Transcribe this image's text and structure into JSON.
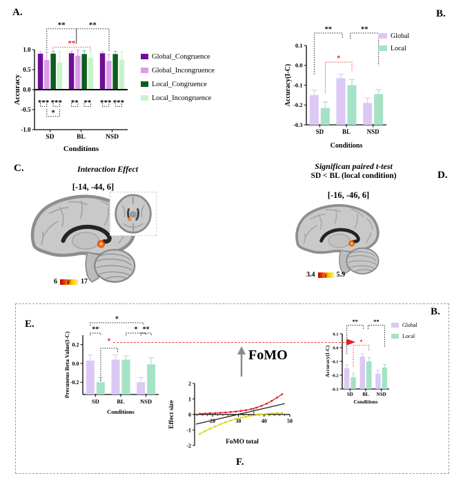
{
  "panel_labels": {
    "a": "A.",
    "b_top": "B.",
    "c": "C.",
    "d": "D.",
    "e": "E.",
    "f": "F.",
    "b_bottom": "B."
  },
  "panel_c": {
    "title": "Interaction Effect",
    "coords": "[-14, -44, 6]",
    "colorbar_min": "6",
    "colorbar_max": "17",
    "colorbar_stat": "F"
  },
  "panel_d": {
    "title_line1": "Significan paired t-test",
    "title_line2": "SD < BL (local condition)",
    "coords": "[-16, -46, 6]",
    "colorbar_min": "3.4",
    "colorbar_max": "5.9",
    "colorbar_stat": "t"
  },
  "fomo_label": "FoMO",
  "chart_data": [
    {
      "id": "panel_a",
      "type": "bar",
      "title": "",
      "xlabel": "Conditions",
      "ylabel": "Accuracy",
      "categories": [
        "SD",
        "BL",
        "NSD"
      ],
      "ylim": [
        -1,
        1
      ],
      "ytick_vals": [
        1.0,
        0.5,
        0.0,
        -0.5,
        -1.0
      ],
      "ytick_labels": [
        "1.0",
        "0.5",
        "0.0",
        "-0.5",
        "-1.0"
      ],
      "baseline": "zero",
      "zero_line": true,
      "series": [
        {
          "name": "Global_Congruence",
          "color": "#6E0F96",
          "ecolor": "#D5AEE4",
          "values": [
            0.9,
            0.91,
            0.91
          ],
          "errors": [
            0.05,
            0.05,
            0.04
          ]
        },
        {
          "name": "Global_Incongruence",
          "color": "#DC9BE8",
          "ecolor": "#DC9BE8",
          "values": [
            0.74,
            0.85,
            0.72
          ],
          "errors": [
            0.2,
            0.14,
            0.16
          ]
        },
        {
          "name": "Local_Congruence",
          "color": "#0B5E1B",
          "ecolor": "#7FBF8A",
          "values": [
            0.9,
            0.89,
            0.89
          ],
          "errors": [
            0.06,
            0.08,
            0.07
          ]
        },
        {
          "name": "Local_Incongruence",
          "color": "#C8F3C9",
          "ecolor": "#C8F3C9",
          "values": [
            0.68,
            0.8,
            0.75
          ],
          "errors": [
            0.27,
            0.17,
            0.19
          ]
        }
      ],
      "annotations": [
        {
          "label": "**",
          "color": "#000000",
          "x1": 0.132,
          "x2": 0.45,
          "y": -0.26,
          "d1": 0.267,
          "d2": 0.185
        },
        {
          "label": "**",
          "color": "#000000",
          "x1": 0.45,
          "x2": 0.8,
          "y": -0.26,
          "d1": 0.185,
          "d2": 0.29
        },
        {
          "label": "**",
          "color": "#E8191C",
          "x1": 0.2,
          "x2": 0.6,
          "y": -0.032,
          "d1": 0.03,
          "d2": 0.035
        },
        {
          "label": "***",
          "color": "#000000",
          "x1": 0.063,
          "x2": 0.132,
          "y": 0.71,
          "d1": -0.04,
          "d2": -0.04
        },
        {
          "label": "***",
          "color": "#000000",
          "x1": 0.201,
          "x2": 0.27,
          "y": 0.71,
          "d1": -0.04,
          "d2": -0.04
        },
        {
          "label": "**",
          "color": "#000000",
          "x1": 0.397,
          "x2": 0.466,
          "y": 0.71,
          "d1": -0.04,
          "d2": -0.04
        },
        {
          "label": "**",
          "color": "#000000",
          "x1": 0.534,
          "x2": 0.603,
          "y": 0.71,
          "d1": -0.04,
          "d2": -0.04
        },
        {
          "label": "***",
          "color": "#000000",
          "x1": 0.73,
          "x2": 0.799,
          "y": 0.71,
          "d1": -0.04,
          "d2": -0.04
        },
        {
          "label": "***",
          "color": "#000000",
          "x1": 0.868,
          "x2": 0.937,
          "y": 0.71,
          "d1": -0.04,
          "d2": -0.04
        },
        {
          "label": "*",
          "color": "#000000",
          "x1": 0.132,
          "x2": 0.27,
          "y": 0.835,
          "d1": -0.095,
          "d2": -0.095
        }
      ]
    },
    {
      "id": "panel_b",
      "type": "bar",
      "title": "",
      "xlabel": "Conditions",
      "ylabel": "Accuracy(I-C)",
      "categories": [
        "SD",
        "BL",
        "NSD"
      ],
      "ylim": [
        -0.3,
        0.1
      ],
      "ytick_vals": [
        0.1,
        0.0,
        -0.1,
        -0.2,
        -0.3
      ],
      "ytick_labels": [
        "0.1",
        "0.0",
        "-0.1",
        "-0.2",
        "-0.3"
      ],
      "baseline": "min",
      "zero_line": false,
      "legend_items": [
        "Global",
        "Local"
      ],
      "series": [
        {
          "name": "Global",
          "color": "#DBC8F4",
          "values": [
            -0.15,
            -0.065,
            -0.19
          ],
          "errors": [
            0.025,
            0.02,
            0.025
          ]
        },
        {
          "name": "Local",
          "color": "#A5E2C6",
          "values": [
            -0.215,
            -0.1,
            -0.145
          ],
          "errors": [
            0.03,
            0.028,
            0.022
          ]
        }
      ],
      "annotations": [
        {
          "label": "**",
          "color": "#000000",
          "x1": 0.098,
          "x2": 0.45,
          "y": -0.157,
          "d1": 0.52,
          "d2": 0.07
        },
        {
          "label": "**",
          "color": "#000000",
          "x1": 0.55,
          "x2": 0.902,
          "y": -0.157,
          "d1": 0.07,
          "d2": 0.41
        },
        {
          "label": "*",
          "color": "#E8191C",
          "x1": 0.236,
          "x2": 0.569,
          "y": 0.209,
          "d1": 0.39,
          "d2": 0.113
        }
      ]
    },
    {
      "id": "panel_e",
      "type": "bar",
      "title": "",
      "xlabel": "Conditions",
      "ylabel": "Precuneus Beta Value(I-C)",
      "categories": [
        "SD",
        "BL",
        "NSD"
      ],
      "ylim": [
        -0.33,
        0.3
      ],
      "ytick_vals": [
        0.2,
        0.0,
        -0.2
      ],
      "ytick_labels": [
        "0.2",
        "0.0",
        "-0.2"
      ],
      "baseline": "min",
      "zero_line": false,
      "series": [
        {
          "name": "Global",
          "color": "#DBC8F4",
          "values": [
            0.03,
            0.04,
            -0.2
          ],
          "errors": [
            0.06,
            0.05,
            0.05
          ]
        },
        {
          "name": "Local",
          "color": "#A5E2C6",
          "values": [
            -0.2,
            0.04,
            -0.01
          ],
          "errors": [
            0.05,
            0.04,
            0.07
          ]
        }
      ],
      "annotations": [
        {
          "label": "*",
          "color": "#000000",
          "x1": 0.098,
          "x2": 0.8,
          "y": -0.21,
          "d1": 0.05,
          "d2": 0.05
        },
        {
          "label": "**",
          "color": "#000000",
          "x1": 0.098,
          "x2": 0.236,
          "y": -0.035,
          "d1": 0.04,
          "d2": 0.04
        },
        {
          "label": "",
          "color": "#000000",
          "x1": 0.236,
          "x2": 0.46,
          "y": 0.22,
          "d1": 0.55,
          "d2": 0.07
        },
        {
          "label": "*",
          "color": "#E8191C",
          "x1": 0.345,
          "x2": 0.345,
          "y": 0.163,
          "d1": 0,
          "d2": 0
        },
        {
          "label": "*",
          "color": "#000000",
          "x1": 0.569,
          "x2": 0.83,
          "y": -0.035,
          "d1": 0.04,
          "d2": 0.04
        },
        {
          "label": "**",
          "color": "#000000",
          "x1": 0.765,
          "x2": 0.902,
          "y": -0.035,
          "d1": 0.04,
          "d2": 0.04
        }
      ]
    },
    {
      "id": "panel_f",
      "type": "line",
      "title": "",
      "xlabel": "FoMO total",
      "ylabel": "Effect size",
      "xlim": [
        13,
        50
      ],
      "ylim": [
        -2,
        2
      ],
      "xtick_vals": [
        20,
        30,
        40,
        50
      ],
      "xtick_labels": [
        "20",
        "30",
        "40",
        "50"
      ],
      "ytick_vals": [
        2,
        1,
        0,
        -1,
        -2
      ],
      "ytick_labels": [
        "2",
        "1",
        "0",
        "-1",
        "-2"
      ],
      "x": [
        15,
        17,
        19,
        21,
        23,
        25,
        27,
        29,
        31,
        33,
        35,
        37,
        39,
        41,
        43,
        45,
        47
      ],
      "series": [
        {
          "name": "red_curve",
          "color": "#E01F1F",
          "marker": true,
          "y": [
            0.05,
            0.06,
            0.08,
            0.09,
            0.11,
            0.13,
            0.16,
            0.19,
            0.23,
            0.28,
            0.35,
            0.44,
            0.56,
            0.7,
            0.88,
            1.08,
            1.3
          ]
        },
        {
          "name": "yellow_curve",
          "color": "#D6D600",
          "marker": true,
          "y": [
            -1.25,
            -1.08,
            -0.92,
            -0.77,
            -0.63,
            -0.5,
            -0.39,
            -0.29,
            -0.21,
            -0.14,
            -0.08,
            -0.03,
            0.01,
            0.04,
            0.07,
            0.09,
            0.1
          ]
        },
        {
          "name": "black_line",
          "color": "#222222",
          "x": [
            13.5,
            48
          ],
          "y": [
            -0.62,
            0.7
          ]
        },
        {
          "name": "blue_dashed_segment",
          "color": "#4050D0",
          "x": [
            36,
            36
          ],
          "y": [
            0.08,
            0.52
          ],
          "dash": "2.5 2.5",
          "width": 1.6
        }
      ]
    }
  ]
}
